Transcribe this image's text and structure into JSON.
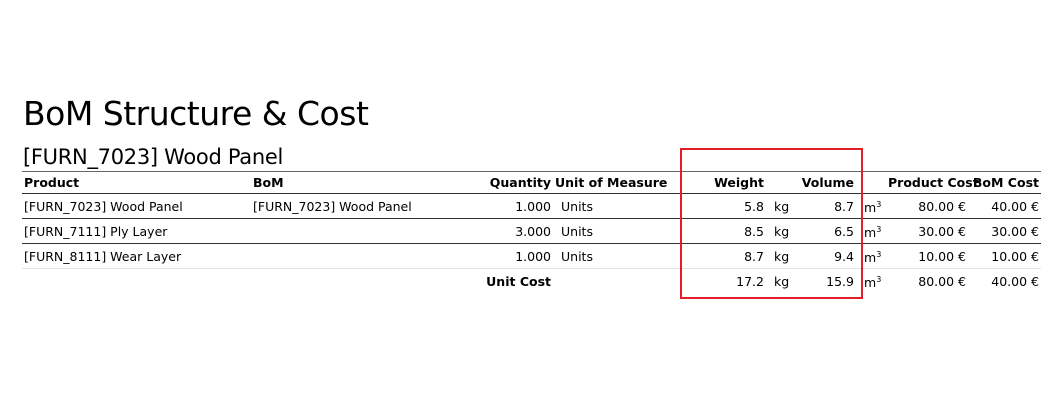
{
  "report": {
    "title": "BoM Structure & Cost",
    "subtitle": "[FURN_7023] Wood Panel"
  },
  "columns": {
    "product": "Product",
    "bom": "BoM",
    "quantity": "Quantity",
    "uom": "Unit of Measure",
    "weight": "Weight",
    "volume": "Volume",
    "product_cost": "Product Cost",
    "bom_cost": "BoM Cost"
  },
  "rows": [
    {
      "product": "[FURN_7023] Wood Panel",
      "bom": "[FURN_7023] Wood Panel",
      "quantity": "1.000",
      "uom": "Units",
      "weight": "5.8",
      "weight_unit": "kg",
      "volume": "8.7",
      "volume_unit": "m",
      "volume_exp": "3",
      "product_cost": "80.00 €",
      "bom_cost": "40.00 €"
    },
    {
      "product": "[FURN_7111] Ply Layer",
      "bom": "",
      "quantity": "3.000",
      "uom": "Units",
      "weight": "8.5",
      "weight_unit": "kg",
      "volume": "6.5",
      "volume_unit": "m",
      "volume_exp": "3",
      "product_cost": "30.00 €",
      "bom_cost": "30.00 €"
    },
    {
      "product": "[FURN_8111] Wear Layer",
      "bom": "",
      "quantity": "1.000",
      "uom": "Units",
      "weight": "8.7",
      "weight_unit": "kg",
      "volume": "9.4",
      "volume_unit": "m",
      "volume_exp": "3",
      "product_cost": "10.00 €",
      "bom_cost": "10.00 €"
    }
  ],
  "total": {
    "label": "Unit Cost",
    "weight": "17.2",
    "weight_unit": "kg",
    "volume": "15.9",
    "volume_unit": "m",
    "volume_exp": "3",
    "product_cost": "80.00 €",
    "bom_cost": "40.00 €"
  },
  "highlight_color": "#e41e26"
}
